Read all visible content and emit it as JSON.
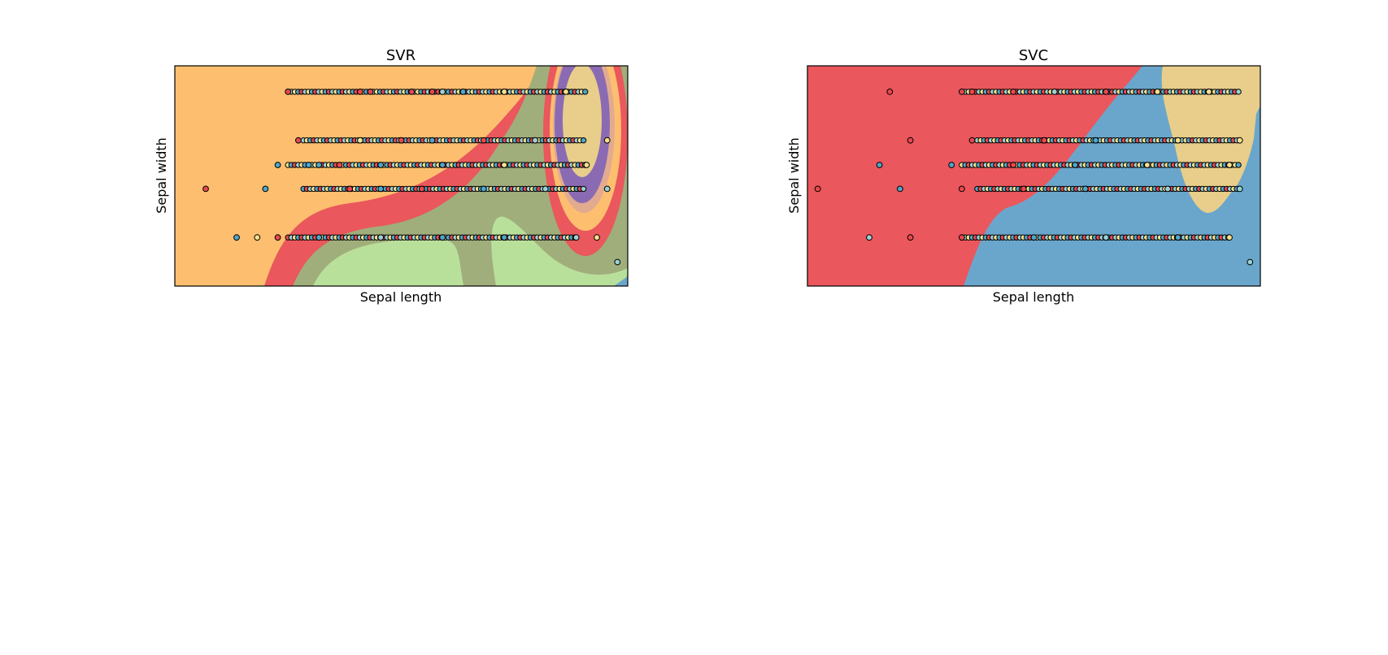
{
  "chart_data": [
    {
      "type": "scatter",
      "panel": "left",
      "title": "SVR",
      "xlabel": "Sepal length",
      "ylabel": "Sepal width",
      "xlim": [
        4.0,
        8.4
      ],
      "ylim": [
        1.5,
        4.9
      ],
      "ticks": "hidden",
      "grid": false,
      "background": "decision-surface-contours",
      "region_colors": [
        "#fdbf6f",
        "#ea575c",
        "#a0ae7b",
        "#b9e09b",
        "#e2ab90",
        "#8a6bb3",
        "#e8ce8a",
        "#6aa6cb"
      ],
      "point_class_colors": [
        "#e8484e",
        "#4ea6c9",
        "#f6e08c",
        "#9ad1d4"
      ],
      "rows_y": [
        4.5,
        3.75,
        3.37,
        3.0,
        2.25,
        1.87
      ],
      "points": [
        [
          4.3,
          3.0,
          0
        ],
        [
          4.8,
          2.25,
          2
        ],
        [
          4.88,
          3.0,
          1
        ],
        [
          5.0,
          3.37,
          1
        ],
        [
          5.1,
          4.5,
          0
        ],
        [
          5.2,
          3.75,
          0
        ],
        [
          5.4,
          3.37,
          1
        ],
        [
          5.8,
          4.5,
          0
        ],
        [
          5.9,
          4.5,
          0
        ],
        [
          6.3,
          4.5,
          0
        ],
        [
          6.5,
          4.5,
          0
        ],
        [
          6.6,
          4.5,
          3
        ],
        [
          6.8,
          4.5,
          1
        ],
        [
          7.2,
          4.5,
          2
        ],
        [
          7.8,
          4.5,
          2
        ],
        [
          5.8,
          3.75,
          2
        ],
        [
          6.2,
          3.75,
          0
        ],
        [
          6.5,
          3.75,
          1
        ],
        [
          7.0,
          3.75,
          0
        ],
        [
          7.5,
          3.75,
          3
        ],
        [
          8.2,
          3.75,
          2
        ],
        [
          5.3,
          3.37,
          1
        ],
        [
          5.6,
          3.37,
          0
        ],
        [
          6.0,
          3.37,
          1
        ],
        [
          6.6,
          3.37,
          1
        ],
        [
          7.2,
          3.37,
          2
        ],
        [
          8.0,
          3.37,
          2
        ],
        [
          5.7,
          3.0,
          0
        ],
        [
          6.0,
          3.0,
          1
        ],
        [
          6.4,
          3.0,
          0
        ],
        [
          7.0,
          3.0,
          1
        ],
        [
          7.6,
          3.0,
          3
        ],
        [
          8.2,
          3.0,
          3
        ],
        [
          4.6,
          2.25,
          1
        ],
        [
          5.0,
          2.25,
          0
        ],
        [
          5.4,
          2.25,
          1
        ],
        [
          6.0,
          2.25,
          3
        ],
        [
          6.6,
          2.25,
          1
        ],
        [
          7.2,
          2.25,
          1
        ],
        [
          7.9,
          2.25,
          3
        ],
        [
          8.1,
          2.25,
          2
        ],
        [
          8.3,
          1.87,
          3
        ]
      ]
    },
    {
      "type": "scatter",
      "panel": "right",
      "title": "SVC",
      "xlabel": "Sepal length",
      "ylabel": "Sepal width",
      "xlim": [
        4.0,
        8.4
      ],
      "ylim": [
        1.5,
        4.9
      ],
      "ticks": "hidden",
      "grid": false,
      "background": "decision-regions",
      "region_colors": [
        "#ea575c",
        "#6aa6cb",
        "#e8ce8a"
      ],
      "point_class_colors": [
        "#e8484e",
        "#4ea6c9",
        "#f6e08c",
        "#9ad1d4"
      ],
      "rows_y": [
        4.5,
        3.75,
        3.37,
        3.0,
        2.25,
        1.87
      ],
      "points": [
        [
          4.1,
          3.0,
          0
        ],
        [
          4.8,
          4.5,
          0
        ],
        [
          5.0,
          3.75,
          0
        ],
        [
          4.9,
          3.0,
          1
        ],
        [
          4.7,
          3.37,
          1
        ],
        [
          5.5,
          4.5,
          0
        ],
        [
          5.6,
          4.5,
          0
        ],
        [
          6.0,
          4.5,
          0
        ],
        [
          6.4,
          4.5,
          3
        ],
        [
          6.9,
          4.5,
          0
        ],
        [
          7.4,
          4.5,
          2
        ],
        [
          7.9,
          4.5,
          2
        ],
        [
          5.6,
          3.75,
          0
        ],
        [
          6.3,
          3.75,
          0
        ],
        [
          6.8,
          3.75,
          1
        ],
        [
          7.6,
          3.75,
          2
        ],
        [
          8.2,
          3.75,
          2
        ],
        [
          5.4,
          3.37,
          1
        ],
        [
          6.0,
          3.37,
          0
        ],
        [
          6.6,
          3.37,
          1
        ],
        [
          7.3,
          3.37,
          2
        ],
        [
          8.1,
          3.37,
          2
        ],
        [
          5.5,
          3.0,
          0
        ],
        [
          6.1,
          3.0,
          0
        ],
        [
          6.7,
          3.0,
          1
        ],
        [
          7.5,
          3.0,
          3
        ],
        [
          8.2,
          3.0,
          3
        ],
        [
          4.6,
          2.25,
          3
        ],
        [
          5.0,
          2.25,
          0
        ],
        [
          5.5,
          2.25,
          0
        ],
        [
          6.2,
          2.25,
          1
        ],
        [
          6.9,
          2.25,
          3
        ],
        [
          7.6,
          2.25,
          1
        ],
        [
          8.1,
          2.25,
          2
        ],
        [
          8.3,
          1.87,
          3
        ]
      ]
    }
  ]
}
